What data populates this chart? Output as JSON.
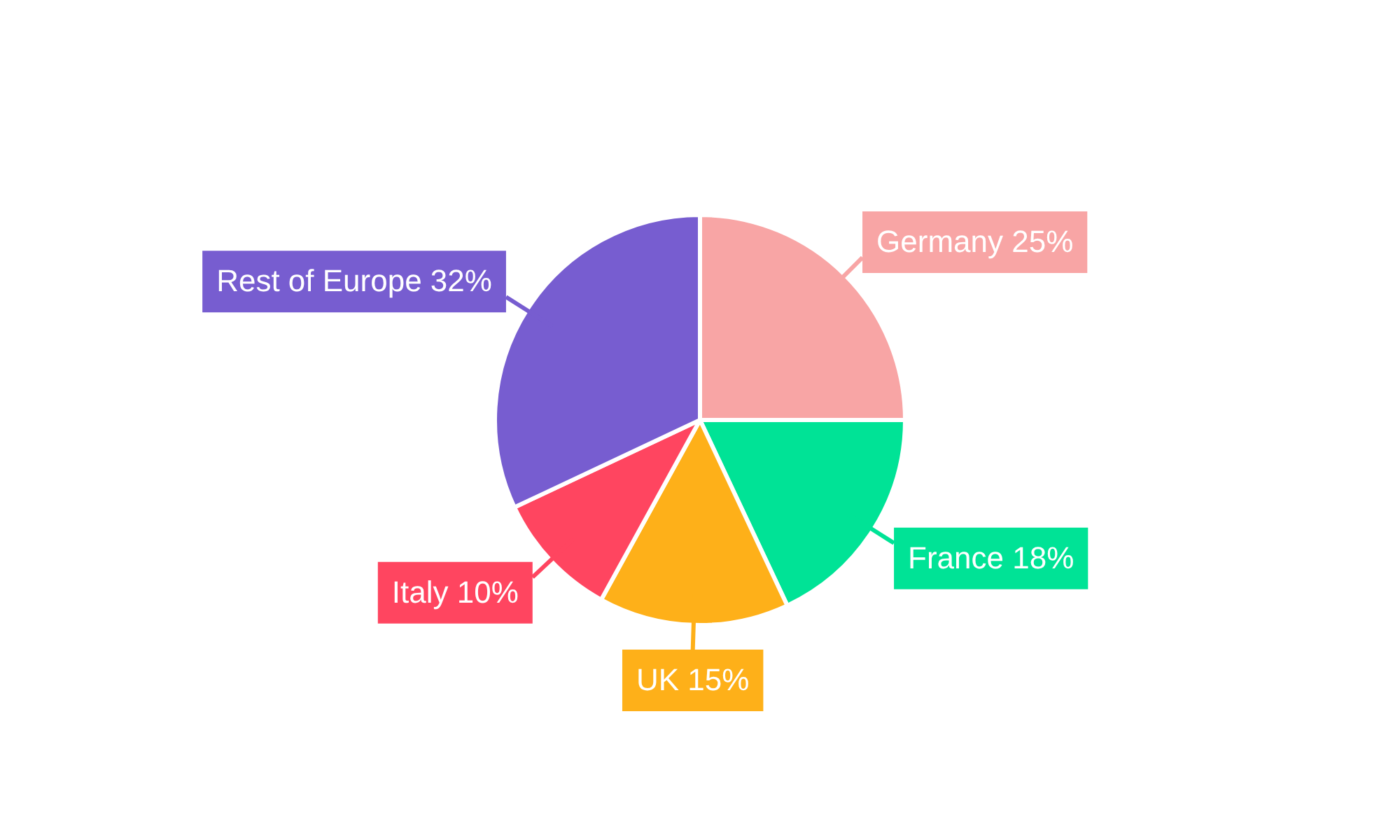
{
  "chart_data": {
    "type": "pie",
    "categories": [
      "Germany",
      "France",
      "UK",
      "Italy",
      "Rest of Europe"
    ],
    "values": [
      25,
      18,
      15,
      10,
      32
    ],
    "value_labels": [
      "25%",
      "18%",
      "15%",
      "10%",
      "32%"
    ],
    "colors": [
      "#f8a5a5",
      "#00e396",
      "#feb019",
      "#ff4560",
      "#775dd0"
    ],
    "legend": false
  }
}
